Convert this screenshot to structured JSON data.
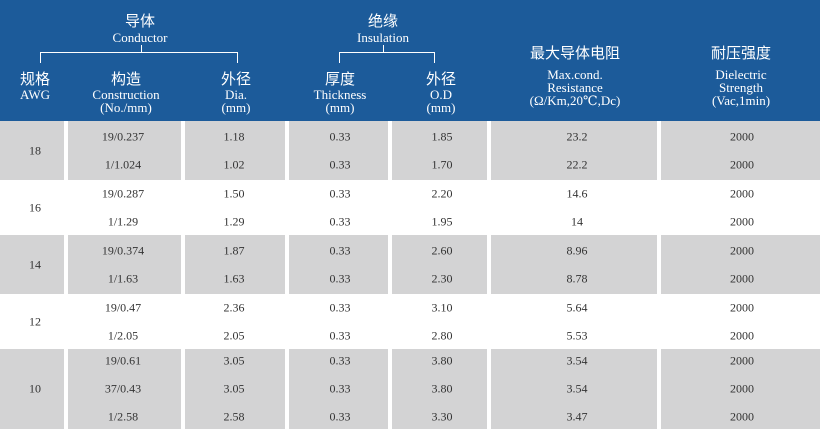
{
  "header": {
    "conductor": {
      "zh": "导体",
      "en": "Conductor"
    },
    "insulation": {
      "zh": "绝缘",
      "en": "Insulation"
    },
    "columns": [
      {
        "zh": "规格",
        "en": [
          "AWG"
        ]
      },
      {
        "zh": "构造",
        "en": [
          "Construction",
          "(No./mm)"
        ]
      },
      {
        "zh": "外径",
        "en": [
          "Dia.",
          "(mm)"
        ]
      },
      {
        "zh": "厚度",
        "en": [
          "Thickness",
          "(mm)"
        ]
      },
      {
        "zh": "外径",
        "en": [
          "O.D",
          "(mm)"
        ]
      },
      {
        "zh": "最大导体电阻",
        "en": [
          "Max.cond.",
          "Resistance",
          "(Ω/Km,20℃,Dc)"
        ]
      },
      {
        "zh": "耐压强度",
        "en": [
          "Dielectric",
          "Strength",
          "(Vac,1min)"
        ]
      }
    ]
  },
  "groups": [
    {
      "awg": "18",
      "rows": [
        {
          "construction": "19/0.237",
          "dia": "1.18",
          "thickness": "0.33",
          "od": "1.85",
          "resistance": "23.2",
          "strength": "2000"
        },
        {
          "construction": "1/1.024",
          "dia": "1.02",
          "thickness": "0.33",
          "od": "1.70",
          "resistance": "22.2",
          "strength": "2000"
        }
      ]
    },
    {
      "awg": "16",
      "rows": [
        {
          "construction": "19/0.287",
          "dia": "1.50",
          "thickness": "0.33",
          "od": "2.20",
          "resistance": "14.6",
          "strength": "2000"
        },
        {
          "construction": "1/1.29",
          "dia": "1.29",
          "thickness": "0.33",
          "od": "1.95",
          "resistance": "14",
          "strength": "2000"
        }
      ]
    },
    {
      "awg": "14",
      "rows": [
        {
          "construction": "19/0.374",
          "dia": "1.87",
          "thickness": "0.33",
          "od": "2.60",
          "resistance": "8.96",
          "strength": "2000"
        },
        {
          "construction": "1/1.63",
          "dia": "1.63",
          "thickness": "0.33",
          "od": "2.30",
          "resistance": "8.78",
          "strength": "2000"
        }
      ]
    },
    {
      "awg": "12",
      "rows": [
        {
          "construction": "19/0.47",
          "dia": "2.36",
          "thickness": "0.33",
          "od": "3.10",
          "resistance": "5.64",
          "strength": "2000"
        },
        {
          "construction": "1/2.05",
          "dia": "2.05",
          "thickness": "0.33",
          "od": "2.80",
          "resistance": "5.53",
          "strength": "2000"
        }
      ]
    },
    {
      "awg": "10",
      "rows": [
        {
          "construction": "19/0.61",
          "dia": "3.05",
          "thickness": "0.33",
          "od": "3.80",
          "resistance": "3.54",
          "strength": "2000"
        },
        {
          "construction": "37/0.43",
          "dia": "3.05",
          "thickness": "0.33",
          "od": "3.80",
          "resistance": "3.54",
          "strength": "2000"
        },
        {
          "construction": "1/2.58",
          "dia": "2.58",
          "thickness": "0.33",
          "od": "3.30",
          "resistance": "3.47",
          "strength": "2000"
        }
      ]
    }
  ]
}
